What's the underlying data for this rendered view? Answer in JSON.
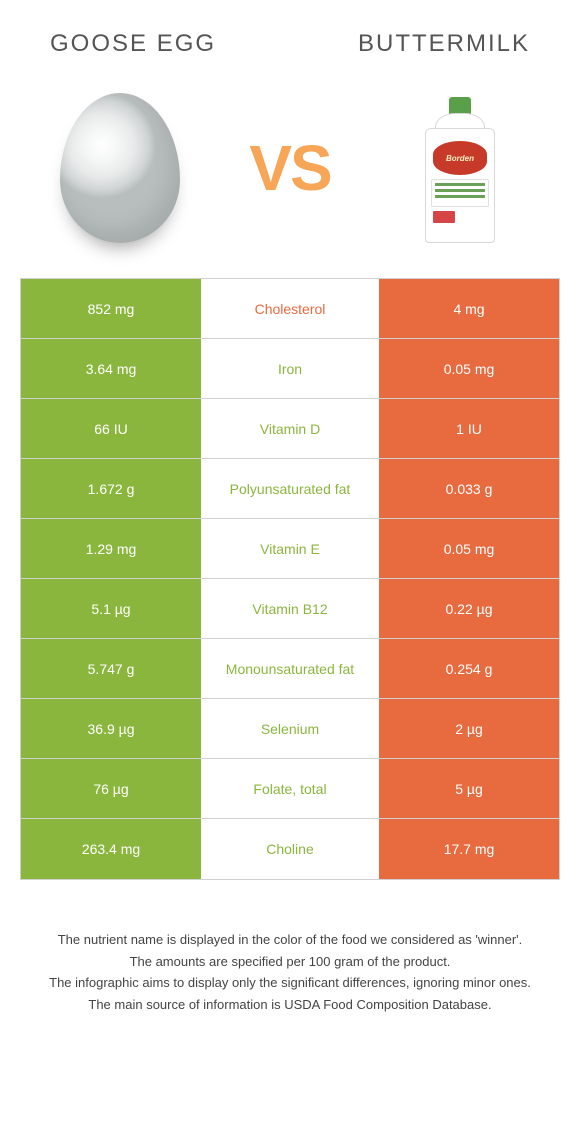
{
  "header": {
    "left_title": "Goose Egg",
    "right_title": "Buttermilk"
  },
  "vs_label": "VS",
  "milk_brand": "Borden",
  "colors": {
    "left_food": "#8bb63e",
    "right_food": "#e86a3f",
    "left_food_text": "#8bb63e",
    "right_food_text": "#e86a3f",
    "neutral_text": "#555555",
    "vs_color": "#f7a556"
  },
  "rows": [
    {
      "left": "852 mg",
      "mid": "Cholesterol",
      "right": "4 mg",
      "winner": "right"
    },
    {
      "left": "3.64 mg",
      "mid": "Iron",
      "right": "0.05 mg",
      "winner": "left"
    },
    {
      "left": "66 IU",
      "mid": "Vitamin D",
      "right": "1 IU",
      "winner": "left"
    },
    {
      "left": "1.672 g",
      "mid": "Polyunsaturated fat",
      "right": "0.033 g",
      "winner": "left"
    },
    {
      "left": "1.29 mg",
      "mid": "Vitamin E",
      "right": "0.05 mg",
      "winner": "left"
    },
    {
      "left": "5.1 µg",
      "mid": "Vitamin B12",
      "right": "0.22 µg",
      "winner": "left"
    },
    {
      "left": "5.747 g",
      "mid": "Monounsaturated fat",
      "right": "0.254 g",
      "winner": "left"
    },
    {
      "left": "36.9 µg",
      "mid": "Selenium",
      "right": "2 µg",
      "winner": "left"
    },
    {
      "left": "76 µg",
      "mid": "Folate, total",
      "right": "5 µg",
      "winner": "left"
    },
    {
      "left": "263.4 mg",
      "mid": "Choline",
      "right": "17.7 mg",
      "winner": "left"
    }
  ],
  "footnotes": [
    "The nutrient name is displayed in the color of the food we considered as 'winner'.",
    "The amounts are specified per 100 gram of the product.",
    "The infographic aims to display only the significant differences, ignoring minor ones.",
    "The main source of information is USDA Food Composition Database."
  ]
}
